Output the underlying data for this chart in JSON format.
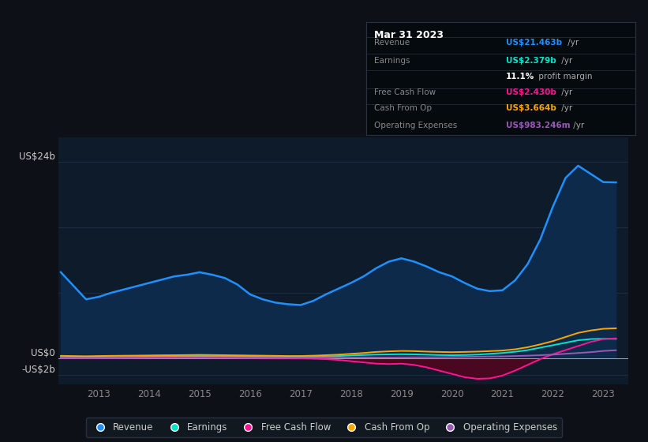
{
  "bg_color": "#0d1117",
  "plot_bg_color": "#0d1b2a",
  "ylabel_top": "US$24b",
  "ylabel_zero": "US$0",
  "ylabel_neg": "-US$2b",
  "years": [
    2012.25,
    2012.75,
    2013.0,
    2013.25,
    2013.75,
    2014.0,
    2014.25,
    2014.5,
    2014.75,
    2015.0,
    2015.25,
    2015.5,
    2015.75,
    2016.0,
    2016.25,
    2016.5,
    2016.75,
    2017.0,
    2017.25,
    2017.5,
    2017.75,
    2018.0,
    2018.25,
    2018.5,
    2018.75,
    2019.0,
    2019.25,
    2019.5,
    2019.75,
    2020.0,
    2020.25,
    2020.5,
    2020.75,
    2021.0,
    2021.25,
    2021.5,
    2021.75,
    2022.0,
    2022.25,
    2022.5,
    2022.75,
    2023.0,
    2023.25
  ],
  "revenue": [
    10.5,
    7.2,
    7.5,
    8.0,
    8.8,
    9.2,
    9.6,
    10.0,
    10.2,
    10.5,
    10.2,
    9.8,
    9.0,
    7.8,
    7.2,
    6.8,
    6.6,
    6.5,
    7.0,
    7.8,
    8.5,
    9.2,
    10.0,
    11.0,
    11.8,
    12.2,
    11.8,
    11.2,
    10.5,
    10.0,
    9.2,
    8.5,
    8.2,
    8.3,
    9.5,
    11.5,
    14.5,
    18.5,
    22.0,
    23.5,
    22.5,
    21.5,
    21.463
  ],
  "earnings": [
    0.15,
    0.1,
    0.12,
    0.15,
    0.18,
    0.2,
    0.22,
    0.25,
    0.27,
    0.28,
    0.26,
    0.24,
    0.22,
    0.2,
    0.18,
    0.16,
    0.15,
    0.15,
    0.18,
    0.22,
    0.28,
    0.35,
    0.4,
    0.45,
    0.48,
    0.5,
    0.48,
    0.44,
    0.4,
    0.38,
    0.4,
    0.45,
    0.55,
    0.65,
    0.8,
    1.0,
    1.3,
    1.6,
    1.9,
    2.2,
    2.35,
    2.38,
    2.379
  ],
  "free_cash_flow": [
    0.05,
    0.04,
    0.04,
    0.05,
    0.06,
    0.07,
    0.07,
    0.08,
    0.08,
    0.08,
    0.07,
    0.06,
    0.05,
    0.04,
    0.03,
    0.02,
    0.01,
    0.0,
    -0.05,
    -0.1,
    -0.2,
    -0.35,
    -0.5,
    -0.65,
    -0.7,
    -0.65,
    -0.8,
    -1.1,
    -1.5,
    -1.9,
    -2.3,
    -2.5,
    -2.45,
    -2.1,
    -1.5,
    -0.8,
    -0.1,
    0.5,
    1.0,
    1.5,
    2.0,
    2.35,
    2.43
  ],
  "cash_from_op": [
    0.3,
    0.25,
    0.28,
    0.3,
    0.33,
    0.35,
    0.37,
    0.38,
    0.4,
    0.42,
    0.4,
    0.38,
    0.36,
    0.34,
    0.32,
    0.3,
    0.28,
    0.28,
    0.32,
    0.38,
    0.45,
    0.55,
    0.65,
    0.78,
    0.85,
    0.9,
    0.88,
    0.82,
    0.78,
    0.75,
    0.78,
    0.82,
    0.88,
    0.95,
    1.1,
    1.35,
    1.7,
    2.1,
    2.6,
    3.1,
    3.4,
    3.6,
    3.664
  ],
  "operating_expenses": [
    0.04,
    0.04,
    0.04,
    0.04,
    0.05,
    0.05,
    0.05,
    0.06,
    0.06,
    0.06,
    0.06,
    0.06,
    0.06,
    0.06,
    0.06,
    0.07,
    0.07,
    0.07,
    0.07,
    0.08,
    0.08,
    0.09,
    0.09,
    0.1,
    0.1,
    0.11,
    0.12,
    0.13,
    0.14,
    0.16,
    0.18,
    0.2,
    0.22,
    0.24,
    0.28,
    0.32,
    0.38,
    0.45,
    0.55,
    0.65,
    0.75,
    0.9,
    0.983
  ],
  "revenue_color": "#1e90ff",
  "earnings_color": "#00e5cc",
  "fcf_color": "#ff1493",
  "cfop_color": "#ffa500",
  "opex_color": "#9b59b6",
  "revenue_fill": "#0d2a4a",
  "fcf_fill_neg": "#4a0820",
  "tooltip": {
    "title": "Mar 31 2023",
    "rows": [
      {
        "label": "Revenue",
        "value": "US$21.463b",
        "suffix": " /yr",
        "value_color": "#1e90ff"
      },
      {
        "label": "Earnings",
        "value": "US$2.379b",
        "suffix": " /yr",
        "value_color": "#00e5cc"
      },
      {
        "label": "",
        "value": "11.1%",
        "suffix": " profit margin",
        "value_color": "#ffffff"
      },
      {
        "label": "Free Cash Flow",
        "value": "US$2.430b",
        "suffix": " /yr",
        "value_color": "#ff1493"
      },
      {
        "label": "Cash From Op",
        "value": "US$3.664b",
        "suffix": " /yr",
        "value_color": "#ffa500"
      },
      {
        "label": "Operating Expenses",
        "value": "US$983.246m",
        "suffix": " /yr",
        "value_color": "#9b59b6"
      }
    ],
    "label_color": "#888888",
    "bg": "#050a0f",
    "border": "#2a3040"
  },
  "legend": [
    {
      "label": "Revenue",
      "color": "#1e90ff"
    },
    {
      "label": "Earnings",
      "color": "#00e5cc"
    },
    {
      "label": "Free Cash Flow",
      "color": "#ff1493"
    },
    {
      "label": "Cash From Op",
      "color": "#ffa500"
    },
    {
      "label": "Operating Expenses",
      "color": "#9b59b6"
    }
  ],
  "xticks": [
    2013,
    2014,
    2015,
    2016,
    2017,
    2018,
    2019,
    2020,
    2021,
    2022,
    2023
  ],
  "ylim": [
    -3.2,
    27.0
  ],
  "xlim": [
    2012.2,
    2023.5
  ],
  "gridlines_y": [
    -2,
    0,
    8,
    16,
    24
  ]
}
